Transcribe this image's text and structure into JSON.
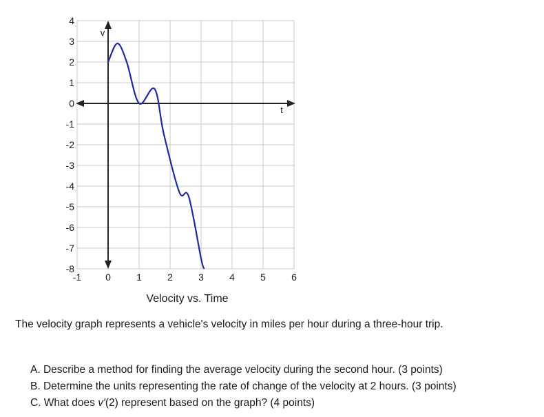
{
  "chart_data": {
    "type": "line",
    "title": "Velocity vs. Time",
    "xlabel": "t",
    "ylabel": "v",
    "xlim": [
      -1,
      6
    ],
    "ylim": [
      -8,
      4
    ],
    "x_ticks": [
      "-1",
      "0",
      "1",
      "2",
      "3",
      "4",
      "5",
      "6"
    ],
    "y_ticks": [
      "4",
      "3",
      "2",
      "1",
      "0",
      "-1",
      "-2",
      "-3",
      "-4",
      "-5",
      "-6",
      "-7",
      "-8"
    ],
    "grid": true,
    "curve_color": "#1f2a9e",
    "grid_color": "#c8c8c8",
    "axis_color": "#222222",
    "series": [
      {
        "x": [
          0,
          0.3,
          0.6,
          1.0,
          1.5,
          1.8,
          2.3,
          2.6,
          3.0,
          3.1
        ],
        "y": [
          2,
          2.9,
          2.0,
          0,
          0.7,
          -1.5,
          -4.3,
          -4.5,
          -7.5,
          -8
        ]
      }
    ]
  },
  "text": {
    "intro": "The velocity graph represents a vehicle's velocity in miles per hour during a three-hour trip.",
    "question_a": "A. Describe a method for finding the average velocity during the second hour. (3 points)",
    "question_b": "B. Determine the units representing the rate of change of the velocity at 2 hours. (3 points)",
    "question_c_prefix": "C. What does ",
    "question_c_symbol": "v′",
    "question_c_suffix": "(2) represent based on the graph? (4 points)"
  }
}
